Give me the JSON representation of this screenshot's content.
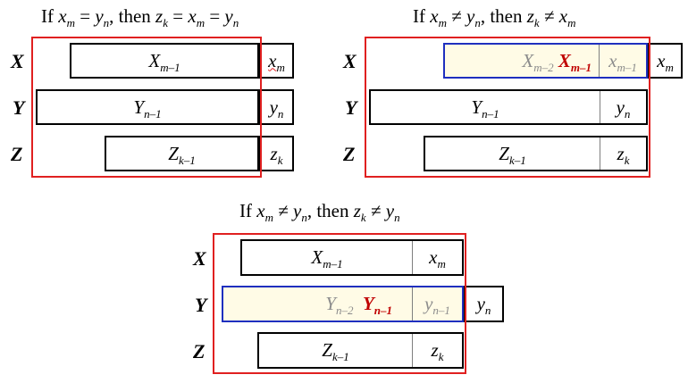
{
  "panel1": {
    "title": {
      "if": "If ",
      "a": "x",
      "a_sub": "m",
      "eq1": " = ",
      "b": "y",
      "b_sub": "n",
      "then": ", then ",
      "c": "z",
      "c_sub": "k",
      "eq2": " = ",
      "d": "x",
      "d_sub": "m",
      "eq3": " = ",
      "e": "y",
      "e_sub": "n"
    },
    "rows": {
      "x": {
        "label": "X",
        "main": "X",
        "main_sub": "m–1",
        "last": "x",
        "last_sub": "m"
      },
      "y": {
        "label": "Y",
        "main": "Y",
        "main_sub": "n–1",
        "last": "y",
        "last_sub": "n"
      },
      "z": {
        "label": "Z",
        "main": "Z",
        "main_sub": "k–1",
        "last": "z",
        "last_sub": "k"
      }
    }
  },
  "panel2": {
    "title": {
      "if": "If ",
      "a": "x",
      "a_sub": "m",
      "op1": " ≠ ",
      "b": "y",
      "b_sub": "n",
      "then": ", then ",
      "c": "z",
      "c_sub": "k",
      "op2": " ≠ ",
      "d": "x",
      "d_sub": "m"
    },
    "rows": {
      "x": {
        "label": "X",
        "gray1": "X",
        "gray1_sub": "m–2",
        "red": "X",
        "red_sub": "m–1",
        "gray2": "x",
        "gray2_sub": "m–1",
        "last": "x",
        "last_sub": "m"
      },
      "y": {
        "label": "Y",
        "main": "Y",
        "main_sub": "n–1",
        "last": "y",
        "last_sub": "n"
      },
      "z": {
        "label": "Z",
        "main": "Z",
        "main_sub": "k–1",
        "last": "z",
        "last_sub": "k"
      }
    }
  },
  "panel3": {
    "title": {
      "if": "If ",
      "a": "x",
      "a_sub": "m",
      "op1": " ≠ ",
      "b": "y",
      "b_sub": "n",
      "then": ", then ",
      "c": "z",
      "c_sub": "k",
      "op2": " ≠ ",
      "d": "y",
      "d_sub": "n"
    },
    "rows": {
      "x": {
        "label": "X",
        "main": "X",
        "main_sub": "m–1",
        "last": "x",
        "last_sub": "m"
      },
      "y": {
        "label": "Y",
        "gray1": "Y",
        "gray1_sub": "n–2",
        "red": "Y",
        "red_sub": "n–1",
        "gray2": "y",
        "gray2_sub": "n–1",
        "last": "y",
        "last_sub": "n"
      },
      "z": {
        "label": "Z",
        "main": "Z",
        "main_sub": "k–1",
        "last": "z",
        "last_sub": "k"
      }
    }
  },
  "colors": {
    "frame_red": "#e02020",
    "frame_blue": "#1f2fbf",
    "highlight": "#fffbe6",
    "accent_red": "#c00000",
    "muted_gray": "#8c8c8c"
  }
}
